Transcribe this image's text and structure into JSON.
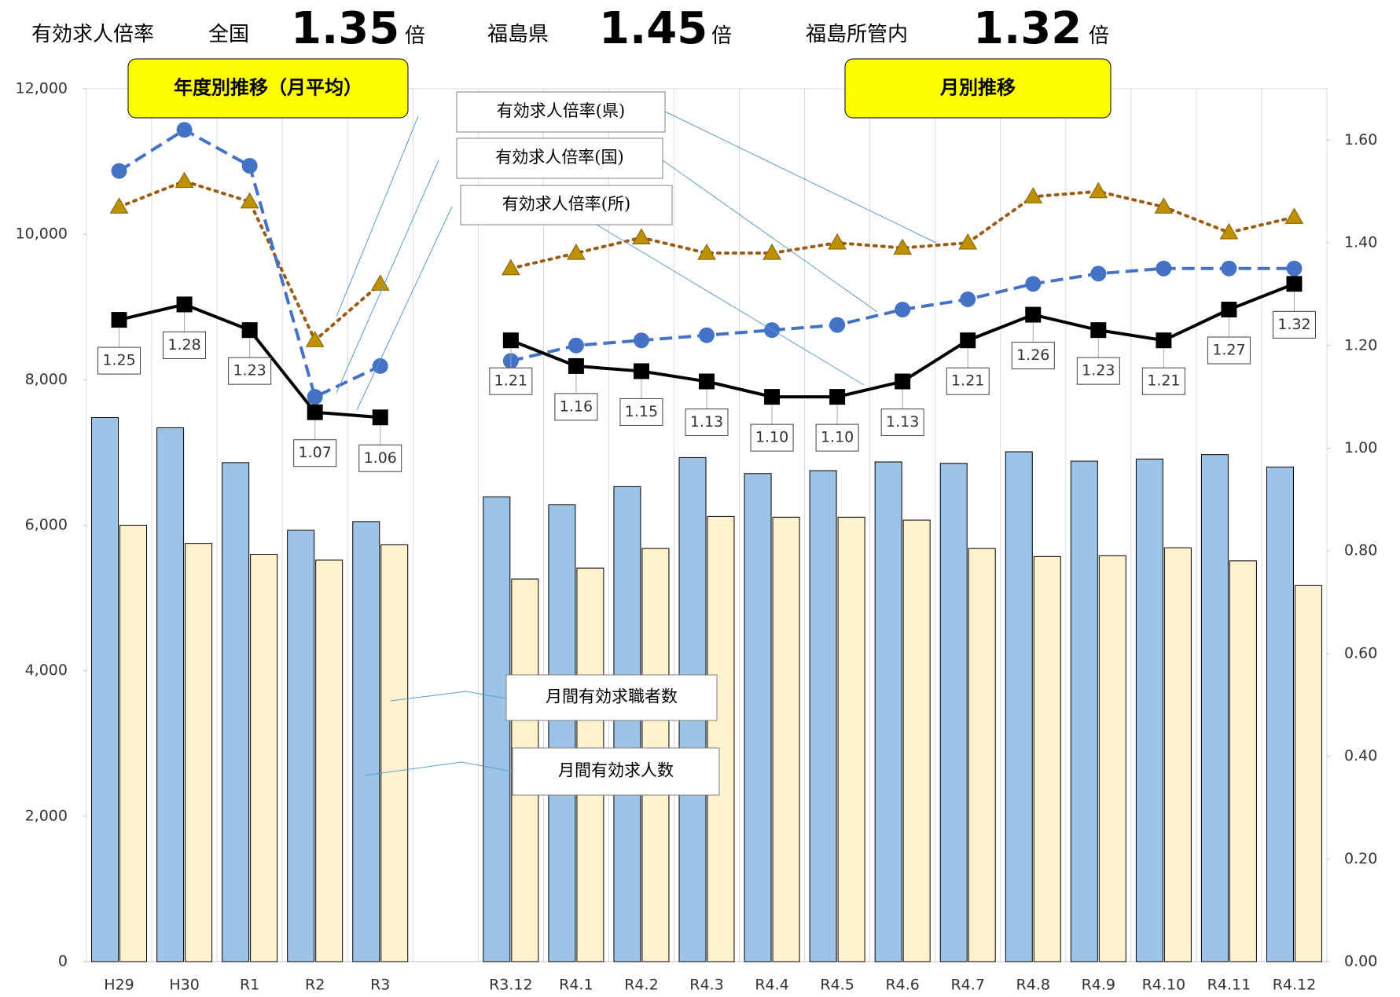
{
  "header": {
    "title": "有効求人倍率",
    "items": [
      {
        "label": "全国",
        "value": "1.35",
        "unit": "倍"
      },
      {
        "label": "福島県",
        "value": "1.45",
        "unit": "倍"
      },
      {
        "label": "福島所管内",
        "value": "1.32",
        "unit": "倍"
      }
    ]
  },
  "chart_data": {
    "type": "bar",
    "categories": [
      "H29",
      "H30",
      "R1",
      "R2",
      "R3",
      null,
      "R3.12",
      "R4.1",
      "R4.2",
      "R4.3",
      "R4.4",
      "R4.5",
      "R4.6",
      "R4.7",
      "R4.8",
      "R4.9",
      "R4.10",
      "R4.11",
      "R4.12"
    ],
    "ylim": [
      0,
      12000
    ],
    "yticks": [
      0,
      {
        "value": 2000,
        "label": "2,000"
      },
      {
        "value": 4000,
        "label": "4,000"
      },
      {
        "value": 6000,
        "label": "6,000"
      },
      {
        "value": 8000,
        "label": "8,000"
      },
      {
        "value": 10000,
        "label": "10,000"
      },
      {
        "value": 12000,
        "label": "12,000"
      }
    ],
    "y2lim": [
      0,
      1.7
    ],
    "y2ticks": [
      {
        "value": 0,
        "label": "0.00"
      },
      {
        "value": 0.2,
        "label": "0.20"
      },
      {
        "value": 0.4,
        "label": "0.40"
      },
      {
        "value": 0.6,
        "label": "0.60"
      },
      {
        "value": 0.8,
        "label": "0.80"
      },
      {
        "value": 1.0,
        "label": "1.00"
      },
      {
        "value": 1.2,
        "label": "1.20"
      },
      {
        "value": 1.4,
        "label": "1.40"
      },
      {
        "value": 1.6,
        "label": "1.60"
      }
    ],
    "series": [
      {
        "name": "月間有効求人数",
        "type": "bar",
        "color": "#9dc3e6",
        "values": [
          7480,
          7340,
          6860,
          5930,
          6050,
          null,
          6390,
          6280,
          6530,
          6930,
          6710,
          6750,
          6870,
          6850,
          7010,
          6880,
          6910,
          6970,
          6800
        ]
      },
      {
        "name": "月間有効求職者数",
        "type": "bar",
        "color": "#fff2cc",
        "values": [
          6000,
          5750,
          5600,
          5520,
          5730,
          null,
          5260,
          5410,
          5680,
          6120,
          6110,
          6110,
          6070,
          5680,
          5570,
          5580,
          5690,
          5510,
          5170
        ]
      },
      {
        "name": "有効求人倍率(県)",
        "type": "line",
        "axis": "y2",
        "color": "#9c5b14",
        "marker_color": "#bf9000",
        "style": "dotted",
        "marker": "triangle",
        "values": [
          1.47,
          1.52,
          1.48,
          1.21,
          1.32,
          null,
          1.35,
          1.38,
          1.41,
          1.38,
          1.38,
          1.4,
          1.39,
          1.4,
          1.49,
          1.5,
          1.47,
          1.42,
          1.45
        ]
      },
      {
        "name": "有効求人倍率(国)",
        "type": "line",
        "axis": "y2",
        "color": "#4472c4",
        "marker_color": "#4472c4",
        "style": "dashed",
        "marker": "circle",
        "values": [
          1.54,
          1.62,
          1.55,
          1.1,
          1.16,
          null,
          1.17,
          1.2,
          1.21,
          1.22,
          1.23,
          1.24,
          1.27,
          1.29,
          1.32,
          1.34,
          1.35,
          1.35,
          1.35
        ]
      },
      {
        "name": "有効求人倍率(所)",
        "type": "line",
        "axis": "y2",
        "color": "#000000",
        "marker_color": "#000000",
        "style": "solid",
        "marker": "square",
        "values": [
          1.25,
          1.28,
          1.23,
          1.07,
          1.06,
          null,
          1.21,
          1.16,
          1.15,
          1.13,
          1.1,
          1.1,
          1.13,
          1.21,
          1.26,
          1.23,
          1.21,
          1.27,
          1.32
        ],
        "value_labels": [
          "1.25",
          "1.28",
          "1.23",
          "1.07",
          "1.06",
          null,
          "1.21",
          "1.16",
          "1.15",
          "1.13",
          "1.10",
          "1.10",
          "1.13",
          "1.21",
          "1.26",
          "1.23",
          "1.21",
          "1.27",
          "1.32"
        ]
      }
    ],
    "annotations": [
      "年度別推移（月平均）",
      "月別推移"
    ]
  }
}
